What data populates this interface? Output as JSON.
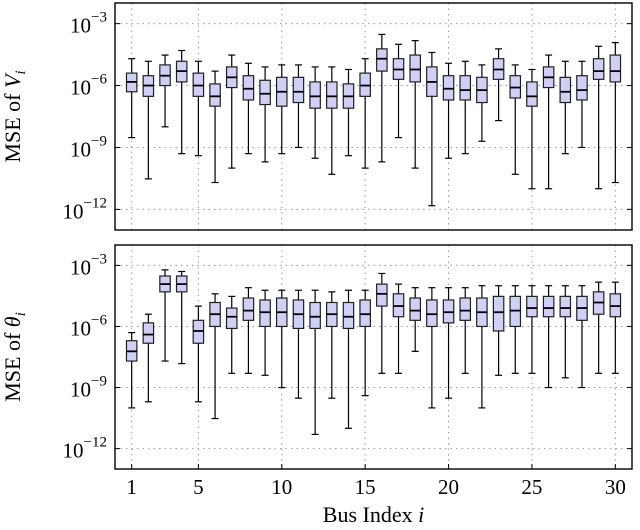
{
  "colors": {
    "box_fill": "#d0d0f7",
    "box_stroke": "#202020",
    "grid": "#9a9a9a"
  },
  "chart_data": [
    {
      "type": "box",
      "ylabel": "MSE of V_i",
      "yscale": "log",
      "ylim": [
        1e-13,
        0.01
      ],
      "yticks": [
        0.001,
        1e-06,
        1e-09,
        1e-12
      ],
      "ytick_labels": [
        "10^{-3}",
        "10^{-6}",
        "10^{-9}",
        "10^{-12}"
      ],
      "xlim": [
        0,
        31
      ],
      "grid": true,
      "boxes": [
        {
          "bus": 1,
          "whislo": 3e-09,
          "q1": 5e-07,
          "med": 1.5e-06,
          "q3": 4e-06,
          "whishi": 2e-05
        },
        {
          "bus": 2,
          "whislo": 3e-11,
          "q1": 3e-07,
          "med": 1e-06,
          "q3": 3e-06,
          "whishi": 1.5e-05
        },
        {
          "bus": 3,
          "whislo": 1e-08,
          "q1": 1e-06,
          "med": 3e-06,
          "q3": 1e-05,
          "whishi": 3e-05
        },
        {
          "bus": 4,
          "whislo": 5e-10,
          "q1": 1.5e-06,
          "med": 5e-06,
          "q3": 1.5e-05,
          "whishi": 5e-05
        },
        {
          "bus": 5,
          "whislo": 4e-10,
          "q1": 3e-07,
          "med": 1e-06,
          "q3": 4e-06,
          "whishi": 1.5e-05
        },
        {
          "bus": 6,
          "whislo": 2e-11,
          "q1": 1e-07,
          "med": 3e-07,
          "q3": 1.2e-06,
          "whishi": 5e-06
        },
        {
          "bus": 7,
          "whislo": 1e-10,
          "q1": 8e-07,
          "med": 2.5e-06,
          "q3": 8e-06,
          "whishi": 3e-05
        },
        {
          "bus": 8,
          "whislo": 5e-10,
          "q1": 2e-07,
          "med": 7e-07,
          "q3": 3e-06,
          "whishi": 1.2e-05
        },
        {
          "bus": 9,
          "whislo": 2e-10,
          "q1": 1.2e-07,
          "med": 4e-07,
          "q3": 1.8e-06,
          "whishi": 8e-06
        },
        {
          "bus": 10,
          "whislo": 5e-10,
          "q1": 1e-07,
          "med": 5e-07,
          "q3": 2.5e-06,
          "whishi": 1e-05
        },
        {
          "bus": 11,
          "whislo": 1e-09,
          "q1": 1.5e-07,
          "med": 5e-07,
          "q3": 2.5e-06,
          "whishi": 1e-05
        },
        {
          "bus": 12,
          "whislo": 3e-10,
          "q1": 8e-08,
          "med": 3e-07,
          "q3": 1.5e-06,
          "whishi": 8e-06
        },
        {
          "bus": 13,
          "whislo": 5e-11,
          "q1": 8e-08,
          "med": 3e-07,
          "q3": 1.5e-06,
          "whishi": 8e-06
        },
        {
          "bus": 14,
          "whislo": 4e-10,
          "q1": 8e-08,
          "med": 3e-07,
          "q3": 1.2e-06,
          "whishi": 6e-06
        },
        {
          "bus": 15,
          "whislo": 1e-10,
          "q1": 3e-07,
          "med": 1e-06,
          "q3": 4e-06,
          "whishi": 2e-05
        },
        {
          "bus": 16,
          "whislo": 2e-10,
          "q1": 5e-06,
          "med": 2e-05,
          "q3": 6e-05,
          "whishi": 0.0003
        },
        {
          "bus": 17,
          "whislo": 3e-09,
          "q1": 2e-06,
          "med": 6e-06,
          "q3": 2e-05,
          "whishi": 0.0001
        },
        {
          "bus": 18,
          "whislo": 1e-10,
          "q1": 1.5e-06,
          "med": 6e-06,
          "q3": 3e-05,
          "whishi": 0.00015
        },
        {
          "bus": 19,
          "whislo": 1.5e-12,
          "q1": 3e-07,
          "med": 1.5e-06,
          "q3": 8e-06,
          "whishi": 4e-05
        },
        {
          "bus": 20,
          "whislo": 3e-10,
          "q1": 2e-07,
          "med": 7e-07,
          "q3": 3e-06,
          "whishi": 1.2e-05
        },
        {
          "bus": 21,
          "whislo": 5e-10,
          "q1": 2e-07,
          "med": 6e-07,
          "q3": 3e-06,
          "whishi": 1.5e-05
        },
        {
          "bus": 22,
          "whislo": 2e-09,
          "q1": 1.5e-07,
          "med": 6e-07,
          "q3": 2.5e-06,
          "whishi": 1e-05
        },
        {
          "bus": 23,
          "whislo": 2e-08,
          "q1": 2e-06,
          "med": 6e-06,
          "q3": 2e-05,
          "whishi": 6e-05
        },
        {
          "bus": 24,
          "whislo": 5e-11,
          "q1": 2.5e-07,
          "med": 8e-07,
          "q3": 3e-06,
          "whishi": 1e-05
        },
        {
          "bus": 25,
          "whislo": 1e-11,
          "q1": 1e-07,
          "med": 3e-07,
          "q3": 1.5e-06,
          "whishi": 6e-06
        },
        {
          "bus": 26,
          "whislo": 1e-11,
          "q1": 8e-07,
          "med": 2.5e-06,
          "q3": 8e-06,
          "whishi": 3e-05
        },
        {
          "bus": 27,
          "whislo": 5e-10,
          "q1": 1.5e-07,
          "med": 5e-07,
          "q3": 2.5e-06,
          "whishi": 1.5e-05
        },
        {
          "bus": 28,
          "whislo": 1e-09,
          "q1": 2e-07,
          "med": 6e-07,
          "q3": 3e-06,
          "whishi": 1.5e-05
        },
        {
          "bus": 29,
          "whislo": 1e-11,
          "q1": 2e-06,
          "med": 5e-06,
          "q3": 2e-05,
          "whishi": 8e-05
        },
        {
          "bus": 30,
          "whislo": 2e-11,
          "q1": 1.5e-06,
          "med": 5e-06,
          "q3": 3e-05,
          "whishi": 0.00012
        }
      ]
    },
    {
      "type": "box",
      "ylabel": "MSE of θ_i",
      "xlabel": "Bus Index i",
      "yscale": "log",
      "ylim": [
        1e-13,
        0.01
      ],
      "yticks": [
        0.001,
        1e-06,
        1e-09,
        1e-12
      ],
      "ytick_labels": [
        "10^{-3}",
        "10^{-6}",
        "10^{-9}",
        "10^{-12}"
      ],
      "xlim": [
        0,
        31
      ],
      "xticks": [
        1,
        5,
        10,
        15,
        20,
        25,
        30
      ],
      "xtick_labels": [
        "1",
        "5",
        "10",
        "15",
        "20",
        "25",
        "30"
      ],
      "grid": true,
      "boxes": [
        {
          "bus": 1,
          "whislo": 1e-10,
          "q1": 2e-08,
          "med": 6e-08,
          "q3": 2e-07,
          "whishi": 5e-07
        },
        {
          "bus": 2,
          "whislo": 2e-10,
          "q1": 1.5e-07,
          "med": 4e-07,
          "q3": 1.5e-06,
          "whishi": 4e-06
        },
        {
          "bus": 3,
          "whislo": 2e-08,
          "q1": 5e-05,
          "med": 0.00012,
          "q3": 0.0003,
          "whishi": 0.0006
        },
        {
          "bus": 4,
          "whislo": 1.5e-08,
          "q1": 5e-05,
          "med": 0.00012,
          "q3": 0.0003,
          "whishi": 0.0005
        },
        {
          "bus": 5,
          "whislo": 2e-10,
          "q1": 1.5e-07,
          "med": 6e-07,
          "q3": 2e-06,
          "whishi": 1e-05
        },
        {
          "bus": 6,
          "whislo": 3e-11,
          "q1": 1e-06,
          "med": 4e-06,
          "q3": 1.5e-05,
          "whishi": 4e-05
        },
        {
          "bus": 7,
          "whislo": 5e-09,
          "q1": 8e-07,
          "med": 3e-06,
          "q3": 8e-06,
          "whishi": 3e-05
        },
        {
          "bus": 8,
          "whislo": 5e-09,
          "q1": 2e-06,
          "med": 6e-06,
          "q3": 2.5e-05,
          "whishi": 8e-05
        },
        {
          "bus": 9,
          "whislo": 4e-09,
          "q1": 1e-06,
          "med": 5e-06,
          "q3": 2e-05,
          "whishi": 6e-05
        },
        {
          "bus": 10,
          "whislo": 1e-09,
          "q1": 1e-06,
          "med": 5e-06,
          "q3": 2.5e-05,
          "whishi": 6e-05
        },
        {
          "bus": 11,
          "whislo": 3e-10,
          "q1": 8e-07,
          "med": 4e-06,
          "q3": 2e-05,
          "whishi": 6e-05
        },
        {
          "bus": 12,
          "whislo": 5e-12,
          "q1": 8e-07,
          "med": 3e-06,
          "q3": 1.5e-05,
          "whishi": 6e-05
        },
        {
          "bus": 13,
          "whislo": 3e-10,
          "q1": 1e-06,
          "med": 4e-06,
          "q3": 1.5e-05,
          "whishi": 5e-05
        },
        {
          "bus": 14,
          "whislo": 1e-11,
          "q1": 8e-07,
          "med": 3e-06,
          "q3": 1.5e-05,
          "whishi": 6e-05
        },
        {
          "bus": 15,
          "whislo": 4e-10,
          "q1": 1e-06,
          "med": 4e-06,
          "q3": 2e-05,
          "whishi": 6e-05
        },
        {
          "bus": 16,
          "whislo": 5e-09,
          "q1": 1e-05,
          "med": 4e-05,
          "q3": 0.00012,
          "whishi": 0.0004
        },
        {
          "bus": 17,
          "whislo": 5e-09,
          "q1": 3e-06,
          "med": 1e-05,
          "q3": 4e-05,
          "whishi": 0.00012
        },
        {
          "bus": 18,
          "whislo": 6e-08,
          "q1": 2e-06,
          "med": 6e-06,
          "q3": 2.5e-05,
          "whishi": 8e-05
        },
        {
          "bus": 19,
          "whislo": 1e-10,
          "q1": 1e-06,
          "med": 4e-06,
          "q3": 2e-05,
          "whishi": 8e-05
        },
        {
          "bus": 20,
          "whislo": 3e-10,
          "q1": 1.5e-06,
          "med": 5e-06,
          "q3": 2e-05,
          "whishi": 8e-05
        },
        {
          "bus": 21,
          "whislo": 5e-09,
          "q1": 2e-06,
          "med": 6e-06,
          "q3": 2.5e-05,
          "whishi": 8e-05
        },
        {
          "bus": 22,
          "whislo": 1e-10,
          "q1": 1e-06,
          "med": 5e-06,
          "q3": 2.5e-05,
          "whishi": 0.0001
        },
        {
          "bus": 23,
          "whislo": 4e-09,
          "q1": 6e-07,
          "med": 5e-06,
          "q3": 3e-05,
          "whishi": 0.0001
        },
        {
          "bus": 24,
          "whislo": 5e-09,
          "q1": 1e-06,
          "med": 6e-06,
          "q3": 3e-05,
          "whishi": 0.0001
        },
        {
          "bus": 25,
          "whislo": 5e-09,
          "q1": 3e-06,
          "med": 8e-06,
          "q3": 3e-05,
          "whishi": 0.0001
        },
        {
          "bus": 26,
          "whislo": 1e-09,
          "q1": 3e-06,
          "med": 8e-06,
          "q3": 3e-05,
          "whishi": 0.0001
        },
        {
          "bus": 27,
          "whislo": 3e-09,
          "q1": 3e-06,
          "med": 8e-06,
          "q3": 3e-05,
          "whishi": 0.0001
        },
        {
          "bus": 28,
          "whislo": 1e-09,
          "q1": 2e-06,
          "med": 8e-06,
          "q3": 3e-05,
          "whishi": 0.0001
        },
        {
          "bus": 29,
          "whislo": 5e-09,
          "q1": 4e-06,
          "med": 1.5e-05,
          "q3": 5e-05,
          "whishi": 0.00015
        },
        {
          "bus": 30,
          "whislo": 5e-09,
          "q1": 3e-06,
          "med": 1e-05,
          "q3": 4e-05,
          "whishi": 0.00015
        }
      ]
    }
  ]
}
